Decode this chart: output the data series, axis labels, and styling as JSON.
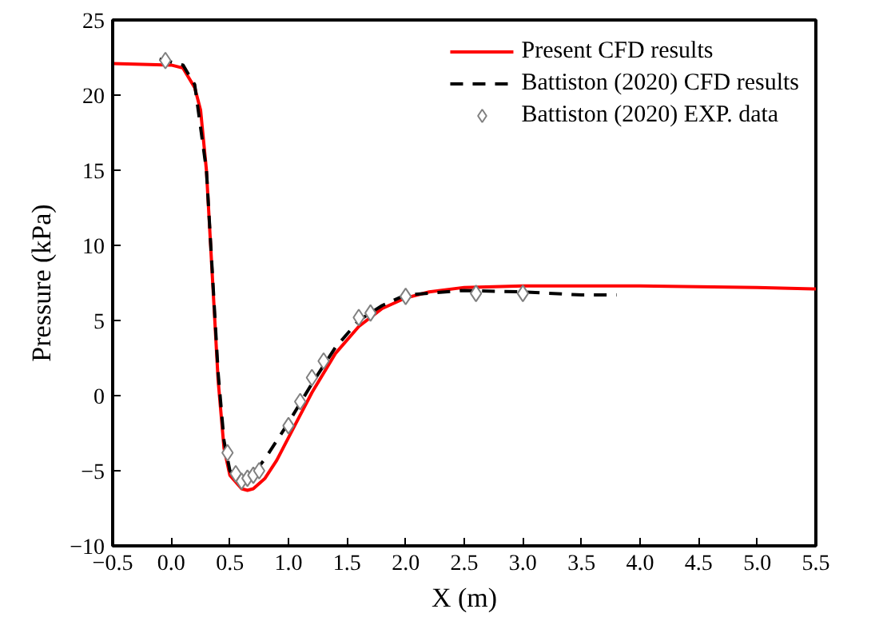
{
  "chart_data": {
    "type": "line",
    "xlabel": "X (m)",
    "ylabel": "Pressure (kPa)",
    "xlim": [
      -0.5,
      5.5
    ],
    "ylim": [
      -10,
      25
    ],
    "xticks": [
      {
        "value": -0.5,
        "label": "−0.5"
      },
      {
        "value": 0,
        "label": "0.0"
      },
      0.5,
      {
        "value": 1,
        "label": "1.0"
      },
      1.5,
      {
        "value": 2,
        "label": "2.0"
      },
      2.5,
      {
        "value": 3,
        "label": "3.0"
      },
      3.5,
      {
        "value": 4,
        "label": "4.0"
      },
      4.5,
      {
        "value": 5,
        "label": "5.0"
      },
      5.5
    ],
    "yticks": [
      {
        "value": -10,
        "label": "−10"
      },
      {
        "value": -5,
        "label": "−5"
      },
      0,
      5,
      10,
      15,
      20,
      25
    ],
    "grid": false,
    "legend": "top right",
    "series": [
      {
        "name": "Present CFD results",
        "color": "#ff0000",
        "line_style": "solid",
        "x": [
          -0.5,
          0,
          0.1,
          0.2,
          0.25,
          0.3,
          0.35,
          0.4,
          0.45,
          0.5,
          0.6,
          0.65,
          0.7,
          0.8,
          0.9,
          1.0,
          1.1,
          1.2,
          1.4,
          1.6,
          1.8,
          2.0,
          2.2,
          2.5,
          3.0,
          4.0,
          5.0,
          5.5
        ],
        "values": [
          22.1,
          22.0,
          21.8,
          20.5,
          19,
          15,
          8,
          1,
          -3.5,
          -5.3,
          -6.2,
          -6.3,
          -6.2,
          -5.5,
          -4.3,
          -2.8,
          -1.3,
          0.2,
          2.8,
          4.6,
          5.8,
          6.5,
          6.9,
          7.2,
          7.3,
          7.3,
          7.2,
          7.1
        ]
      },
      {
        "name": "Battiston (2020) CFD results",
        "color": "#000000",
        "line_style": "dashed",
        "x": [
          -0.1,
          0.1,
          0.2,
          0.3,
          0.4,
          0.45,
          0.5,
          0.6,
          0.7,
          0.8,
          1.0,
          1.2,
          1.4,
          1.6,
          1.8,
          2.0,
          2.5,
          3.0,
          3.5,
          3.8
        ],
        "values": [
          22.4,
          22.0,
          20.7,
          15,
          1.5,
          -3,
          -5,
          -5.8,
          -5.2,
          -4.2,
          -1.8,
          0.8,
          3.2,
          5.0,
          6.0,
          6.7,
          7.0,
          6.9,
          6.7,
          6.7
        ]
      },
      {
        "name": "Battiston (2020) EXP. data",
        "type": "scatter",
        "color": "#808080",
        "marker": "diamond",
        "x": [
          -0.05,
          0.48,
          0.55,
          0.6,
          0.65,
          0.7,
          0.75,
          1.0,
          1.1,
          1.2,
          1.3,
          1.6,
          1.7,
          2.0,
          2.6,
          3.0
        ],
        "values": [
          22.3,
          -3.8,
          -5.2,
          -5.7,
          -5.5,
          -5.3,
          -5.0,
          -2.0,
          -0.4,
          1.2,
          2.3,
          5.2,
          5.5,
          6.6,
          6.8,
          6.8
        ]
      }
    ]
  }
}
